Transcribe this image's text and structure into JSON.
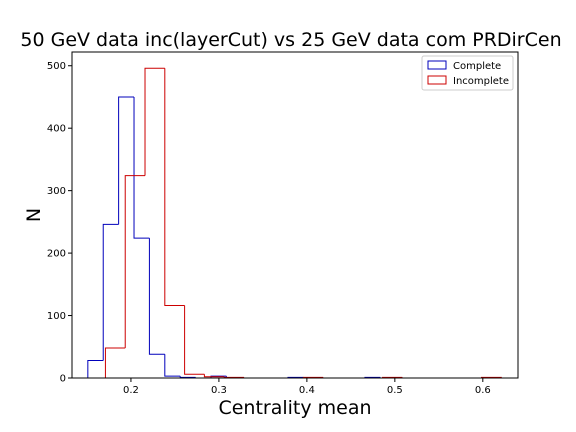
{
  "chart_data": {
    "type": "histogram",
    "title": "50 GeV data inc(layerCut) vs 25 GeV data com PRDirCen",
    "xlabel": "Centrality mean",
    "ylabel": "N",
    "xlim": [
      0.133,
      0.64
    ],
    "ylim": [
      0,
      522
    ],
    "xticks": [
      0.2,
      0.3,
      0.4,
      0.5,
      0.6
    ],
    "xtick_labels": [
      "0.2",
      "0.3",
      "0.4",
      "0.5",
      "0.6"
    ],
    "yticks": [
      0,
      100,
      200,
      300,
      400,
      500
    ],
    "ytick_labels": [
      "0",
      "100",
      "200",
      "300",
      "400",
      "500"
    ],
    "grid": false,
    "legend_position": "top-right",
    "series": [
      {
        "name": "Complete",
        "color": "#0000bb",
        "bin_edges": [
          0.151,
          0.1685,
          0.186,
          0.2035,
          0.221,
          0.2385,
          0.256,
          0.2735,
          0.291,
          0.3085,
          0.326,
          0.3435,
          0.361,
          0.3785,
          0.396,
          0.4135,
          0.431,
          0.4485,
          0.466,
          0.4835,
          0.501
        ],
        "counts": [
          28,
          246,
          450,
          224,
          38,
          3,
          1,
          0,
          3,
          0,
          0,
          0,
          0,
          1,
          0,
          0,
          0,
          0,
          1,
          0
        ]
      },
      {
        "name": "Incomplete",
        "color": "#cc0000",
        "bin_edges": [
          0.171,
          0.1935,
          0.216,
          0.2385,
          0.261,
          0.2835,
          0.306,
          0.3285,
          0.351,
          0.3735,
          0.396,
          0.4185,
          0.441,
          0.4635,
          0.486,
          0.5085,
          0.531,
          0.5535,
          0.576,
          0.5985,
          0.621
        ],
        "counts": [
          48,
          324,
          496,
          116,
          6,
          2,
          1,
          0,
          0,
          0,
          1,
          0,
          0,
          0,
          1,
          0,
          0,
          0,
          0,
          1
        ]
      }
    ]
  }
}
